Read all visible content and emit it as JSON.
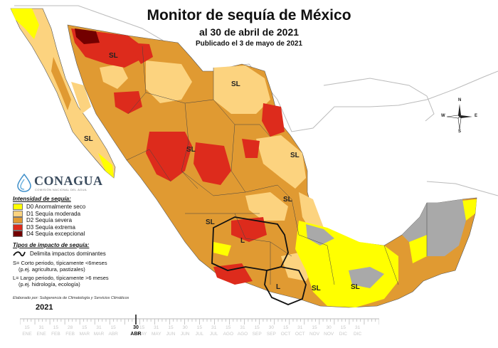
{
  "header": {
    "title": "Monitor de sequía de México",
    "subtitle": "al 30 de abril de 2021",
    "published": "Publicado el 3 de mayo de 2021"
  },
  "logo": {
    "name": "CONAGUA",
    "tagline": "COMISIÓN NACIONAL DEL AGUA"
  },
  "legend": {
    "intensity_title": "Intensidad de sequía:",
    "items": [
      {
        "code": "D0",
        "label": "D0 Anormalmente seco",
        "color": "#ffff00"
      },
      {
        "code": "D1",
        "label": "D1 Sequía moderada",
        "color": "#fcd37f"
      },
      {
        "code": "D2",
        "label": "D2 Sequía severa",
        "color": "#e09a32"
      },
      {
        "code": "D3",
        "label": "D3 Sequía extrema",
        "color": "#dd2b1c"
      },
      {
        "code": "D4",
        "label": "D4 Sequía excepcional",
        "color": "#730000"
      }
    ],
    "impact_title": "Tipos de impacto de sequía:",
    "impact_line": "Delimita impactos dominantes",
    "short_1": "S= Corto periodo, típicamente <6meses",
    "short_2": "(p.ej. agricultura, pastizales)",
    "long_1": "L= Largo periodo, típicamente >6 meses",
    "long_2": "(p.ej. hidrología, ecología)",
    "credit": "Elaborado por: Subgerencia de Climatología y Servicios Climáticos"
  },
  "map_labels": [
    "SL",
    "SL",
    "SL",
    "SL",
    "SL",
    "SL",
    "SL",
    "L",
    "SL",
    "L",
    "SL"
  ],
  "compass": {
    "n": "N",
    "s": "S",
    "e": "E",
    "w": "W"
  },
  "timeline": {
    "year": "2021",
    "months": [
      "ENE",
      "ENE",
      "FEB",
      "FEB",
      "MAR",
      "MAR",
      "ABR",
      "ABR",
      "MAY",
      "MAY",
      "JUN",
      "JUN",
      "JUL",
      "JUL",
      "AGO",
      "AGO",
      "SEP",
      "SEP",
      "OCT",
      "OCT",
      "NOV",
      "NOV",
      "DIC",
      "DIC"
    ],
    "days": [
      "15",
      "31",
      "15",
      "28",
      "15",
      "31",
      "15",
      "30",
      "15",
      "31",
      "15",
      "30",
      "15",
      "31",
      "15",
      "31",
      "15",
      "30",
      "15",
      "31",
      "15",
      "30",
      "15",
      "31"
    ],
    "current_day": "30",
    "current_month": "ABR"
  }
}
